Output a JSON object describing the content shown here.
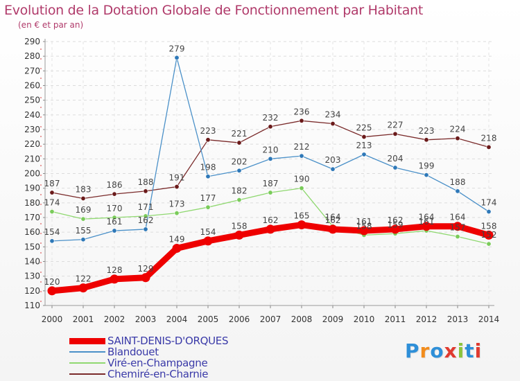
{
  "title": "Evolution de la Dotation Globale de Fonctionnement par Habitant",
  "subtitle": "(en € et par an)",
  "logo": {
    "letters": [
      "P",
      "r",
      "o",
      "x",
      "i",
      "t",
      "i"
    ],
    "colors": [
      "#2e8fd8",
      "#f28c1c",
      "#2e8fd8",
      "#e03a2f",
      "#8cc43c",
      "#2e8fd8",
      "#e03a2f"
    ]
  },
  "chart_data": {
    "type": "line",
    "title": "Evolution de la Dotation Globale de Fonctionnement par Habitant",
    "subtitle": "(en € et par an)",
    "x": [
      "2000",
      "2001",
      "2002",
      "2003",
      "2004",
      "2005",
      "2006",
      "2007",
      "2008",
      "2009",
      "2010",
      "2011",
      "2012",
      "2013",
      "2014"
    ],
    "ylim": [
      110,
      290
    ],
    "yticks": [
      110,
      120,
      130,
      140,
      150,
      160,
      170,
      180,
      190,
      200,
      210,
      220,
      230,
      240,
      250,
      260,
      270,
      280,
      290
    ],
    "grid": true,
    "legend_position": "bottom",
    "series": [
      {
        "name": "Chemiré-en-Charnie",
        "color": "#7a2a2a",
        "width": 1.3,
        "marker": "#6a1a1a",
        "values": [
          187,
          183,
          186,
          188,
          191,
          223,
          221,
          232,
          236,
          234,
          225,
          227,
          223,
          224,
          218
        ],
        "labels": [
          "187",
          "183",
          "186",
          "188",
          "191",
          "223",
          "221",
          "232",
          "236",
          "234",
          "225",
          "227",
          "223",
          "224",
          "218"
        ]
      },
      {
        "name": "Blandouet",
        "color": "#4a90c8",
        "width": 1.3,
        "marker": "#2e78b8",
        "values": [
          154,
          155,
          161,
          162,
          279,
          198,
          202,
          210,
          212,
          203,
          213,
          204,
          199,
          188,
          174
        ],
        "labels": [
          "154",
          "155",
          "161",
          "162",
          "279",
          "198",
          "202",
          "210",
          "212",
          "203",
          "213",
          "204",
          "199",
          "188",
          "174"
        ]
      },
      {
        "name": "Viré-en-Champagne",
        "color": "#8fd870",
        "width": 1.3,
        "marker": "#7acb5a",
        "values": [
          174,
          169,
          170,
          171,
          173,
          177,
          182,
          187,
          190,
          164,
          158,
          159,
          161,
          157,
          152
        ],
        "labels": [
          "174",
          "169",
          "170",
          "171",
          "173",
          "177",
          "182",
          "187",
          "190",
          "164",
          "158",
          "159",
          "161",
          "157",
          "152"
        ]
      },
      {
        "name": "SAINT-DENIS-D'ORQUES",
        "color": "#ee0000",
        "width": 9,
        "marker": "#ee0000",
        "values": [
          120,
          122,
          128,
          129,
          149,
          154,
          158,
          162,
          165,
          162,
          161,
          162,
          164,
          164,
          158
        ],
        "labels": [
          "120",
          "122",
          "128",
          "129",
          "149",
          "154",
          "158",
          "162",
          "165",
          "162",
          "161",
          "162",
          "164",
          "164",
          "158"
        ]
      }
    ],
    "legend": [
      {
        "name": "SAINT-DENIS-D'ORQUES",
        "color": "#ee0000"
      },
      {
        "name": "Blandouet",
        "color": "#4a90c8"
      },
      {
        "name": "Viré-en-Champagne",
        "color": "#8fd870"
      },
      {
        "name": "Chemiré-en-Charnie",
        "color": "#7a2a2a"
      }
    ]
  }
}
